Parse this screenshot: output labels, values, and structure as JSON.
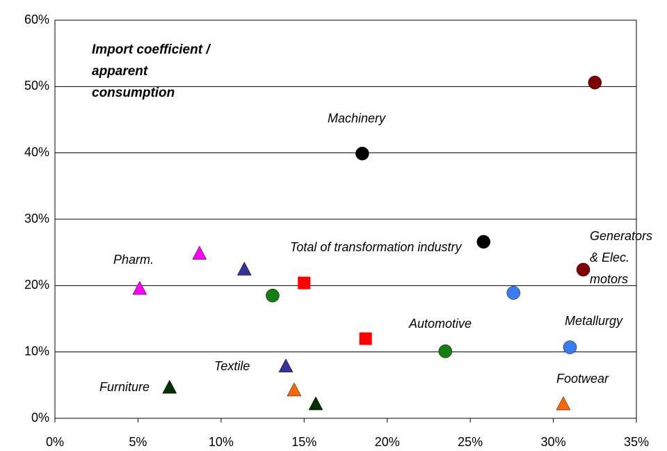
{
  "chart_data": {
    "type": "scatter",
    "title": "Import coefficient / apparent consumption",
    "annotations": [
      "Machinery",
      "Total of transformation industry",
      "Generators & Elec. motors",
      "Pharm.",
      "Automotive",
      "Metallurgy",
      "Textile",
      "Furniture",
      "Footwear"
    ],
    "xlim": [
      0,
      35
    ],
    "xticks": [
      {
        "value": 0,
        "label": "0%"
      },
      {
        "value": 5,
        "label": "5%"
      },
      {
        "value": 10,
        "label": "10%"
      },
      {
        "value": 15,
        "label": "15%"
      },
      {
        "value": 20,
        "label": "20%"
      },
      {
        "value": 25,
        "label": "25%"
      },
      {
        "value": 30,
        "label": "30%"
      },
      {
        "value": 35,
        "label": "35%"
      }
    ],
    "ylim": [
      0,
      60
    ],
    "yticks": [
      {
        "value": 0,
        "label": "0%"
      },
      {
        "value": 10,
        "label": "10%"
      },
      {
        "value": 20,
        "label": "20%"
      },
      {
        "value": 30,
        "label": "30%"
      },
      {
        "value": 40,
        "label": "40%"
      },
      {
        "value": 50,
        "label": "50%"
      },
      {
        "value": 60,
        "label": "60%"
      }
    ],
    "grid": true,
    "series": [
      {
        "color": "#000000",
        "marker": "circle",
        "x": [
          18.5,
          25.8
        ],
        "values": [
          39.9,
          26.6
        ]
      },
      {
        "color": "#800000",
        "marker": "circle",
        "x": [
          32.5,
          31.8
        ],
        "values": [
          50.6,
          22.4
        ]
      },
      {
        "color": "#3b7df0",
        "marker": "circle",
        "x": [
          27.6,
          31.0
        ],
        "values": [
          18.9,
          10.7
        ]
      },
      {
        "color": "#118011",
        "marker": "circle",
        "x": [
          23.5,
          13.1
        ],
        "values": [
          10.1,
          18.5
        ]
      },
      {
        "color": "#ff0000",
        "marker": "square",
        "x": [
          15.0,
          18.7
        ],
        "values": [
          20.4,
          12.0
        ]
      },
      {
        "color": "#ff00ff",
        "marker": "triangle",
        "x": [
          5.1,
          8.7
        ],
        "values": [
          19.5,
          24.8
        ]
      },
      {
        "color": "#333399",
        "marker": "triangle",
        "x": [
          11.4,
          13.9
        ],
        "values": [
          22.4,
          7.8
        ]
      },
      {
        "color": "#003300",
        "marker": "triangle",
        "x": [
          6.9,
          15.7
        ],
        "values": [
          4.6,
          2.1
        ]
      },
      {
        "color": "#ff6600",
        "marker": "triangle",
        "x": [
          14.4,
          30.6
        ],
        "values": [
          4.2,
          2.1
        ]
      }
    ]
  }
}
